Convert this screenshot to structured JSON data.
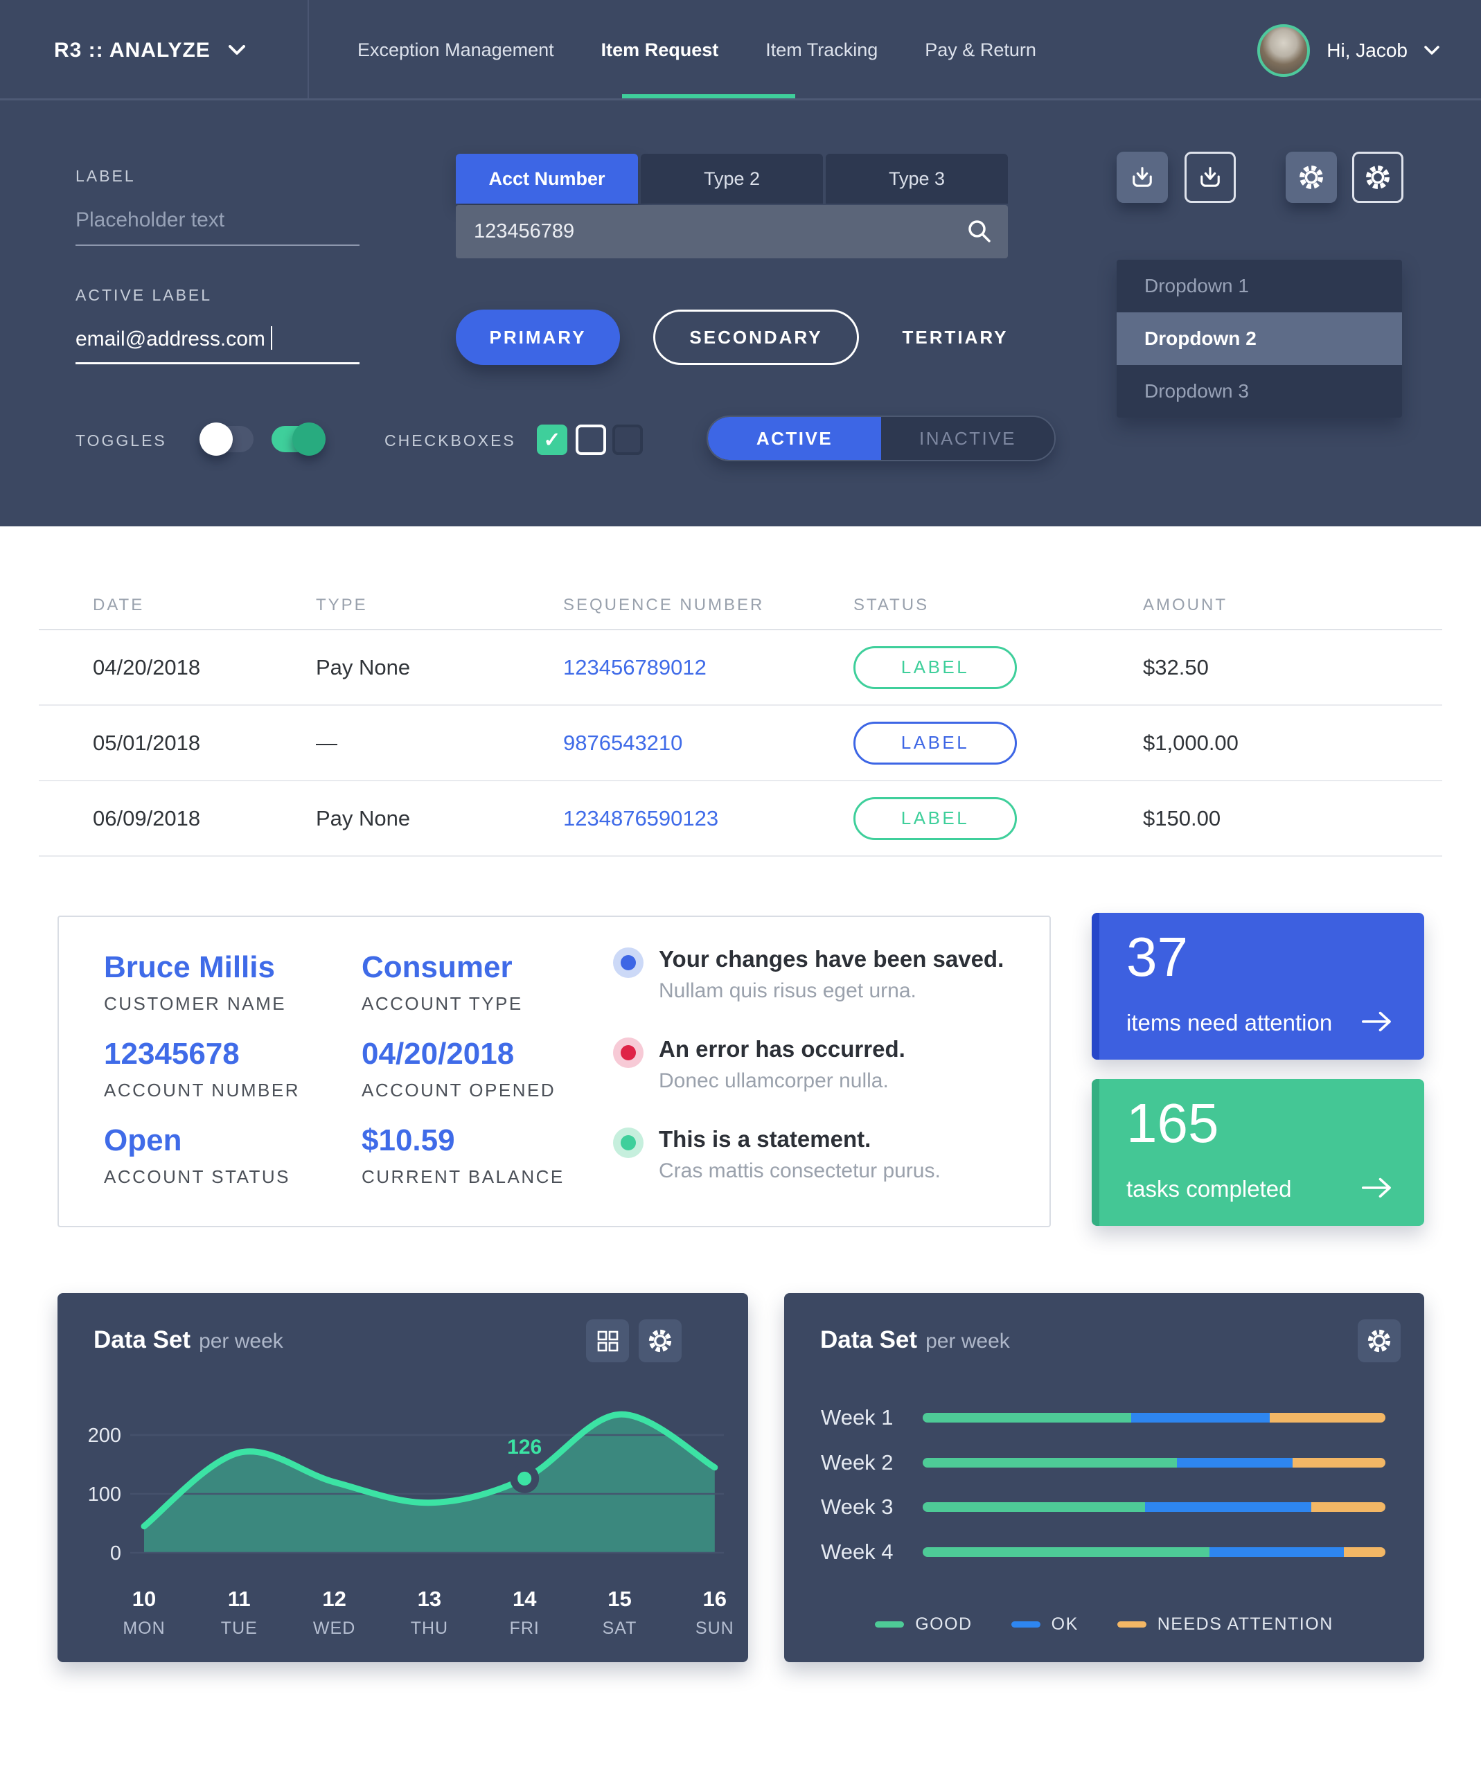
{
  "colors": {
    "slate": "#3c4862",
    "dark": "#2d3850",
    "accent_blue": "#3d66e5",
    "green": "#3fcf9b",
    "chart_line_green": "#3ce3a4",
    "red": "#df2347",
    "orange": "#f3b765",
    "bar_blue": "#2e86f0",
    "link_blue": "#3f6be8"
  },
  "nav": {
    "brand": "R3 :: ANALYZE",
    "items": [
      {
        "label": "Exception Management",
        "active": false
      },
      {
        "label": "Item Request",
        "active": true
      },
      {
        "label": "Item Tracking",
        "active": false
      },
      {
        "label": "Pay & Return",
        "active": false
      }
    ],
    "user": "Hi, Jacob"
  },
  "form": {
    "label1": "LABEL",
    "placeholder": "Placeholder text",
    "label2": "ACTIVE LABEL",
    "email_value": "email@address.com",
    "tabs": [
      "Acct Number",
      "Type 2",
      "Type 3"
    ],
    "active_tab": "Acct Number",
    "search_value": "123456789",
    "buttons": {
      "primary": "PRIMARY",
      "secondary": "SECONDARY",
      "tertiary": "TERTIARY"
    },
    "dropdown_items": [
      "Dropdown 1",
      "Dropdown 2",
      "Dropdown 3"
    ],
    "dropdown_selected": "Dropdown 2",
    "toggles_label": "TOGGLES",
    "toggles": [
      "off",
      "on"
    ],
    "checkboxes_label": "CHECKBOXES",
    "checkboxes": [
      "checked",
      "light",
      "dark"
    ],
    "segmented": {
      "active": "ACTIVE",
      "inactive": "INACTIVE"
    }
  },
  "table": {
    "headers": [
      "DATE",
      "TYPE",
      "SEQUENCE NUMBER",
      "STATUS",
      "AMOUNT"
    ],
    "rows": [
      {
        "date": "04/20/2018",
        "type": "Pay None",
        "sequence": "123456789012",
        "status": "LABEL",
        "status_color": "green",
        "amount": "$32.50"
      },
      {
        "date": "05/01/2018",
        "type": "—",
        "sequence": "9876543210",
        "status": "LABEL",
        "status_color": "blue",
        "amount": "$1,000.00"
      },
      {
        "date": "06/09/2018",
        "type": "Pay None",
        "sequence": "1234876590123",
        "status": "LABEL",
        "status_color": "green",
        "amount": "$150.00"
      }
    ]
  },
  "account": {
    "fields": [
      {
        "value": "Bruce Millis",
        "label": "CUSTOMER NAME"
      },
      {
        "value": "Consumer",
        "label": "ACCOUNT TYPE"
      },
      {
        "value": "12345678",
        "label": "ACCOUNT NUMBER"
      },
      {
        "value": "04/20/2018",
        "label": "ACCOUNT OPENED"
      },
      {
        "value": "Open",
        "label": "ACCOUNT STATUS"
      },
      {
        "value": "$10.59",
        "label": "CURRENT BALANCE"
      }
    ]
  },
  "messages": [
    {
      "title": "Your changes have been saved.",
      "body": "Nullam quis risus eget urna.",
      "color": "#3d66e5",
      "halo": "#ccd9f7"
    },
    {
      "title": "An error has occurred.",
      "body": "Donec ullamcorper nulla.",
      "color": "#df2347",
      "halo": "#f7cad6"
    },
    {
      "title": "This is a statement.",
      "body": "Cras mattis consectetur purus.",
      "color": "#3fcf9b",
      "halo": "#c6efdd"
    }
  ],
  "stat_cards": [
    {
      "value": "37",
      "label": "items need attention",
      "color": "blue"
    },
    {
      "value": "165",
      "label": "tasks completed",
      "color": "green"
    }
  ],
  "chart_data": [
    {
      "type": "area",
      "title": "Data Set",
      "subtitle": "per week",
      "x": [
        "10",
        "11",
        "12",
        "13",
        "14",
        "15",
        "16"
      ],
      "x_days": [
        "MON",
        "TUE",
        "WED",
        "THU",
        "FRI",
        "SAT",
        "SUN"
      ],
      "values": [
        45,
        170,
        120,
        85,
        126,
        235,
        145
      ],
      "highlight": {
        "index": 4,
        "label": "126"
      },
      "yticks": [
        0,
        100,
        200
      ],
      "ylim": [
        0,
        250
      ],
      "grid": true,
      "series_color": "#3ce3a4"
    },
    {
      "type": "bar-horizontal-stacked",
      "title": "Data Set",
      "subtitle": "per week",
      "categories": [
        "Week 1",
        "Week 2",
        "Week 3",
        "Week 4"
      ],
      "series": [
        {
          "name": "GOOD",
          "color": "#4ecb97",
          "values": [
            45,
            55,
            48,
            62
          ]
        },
        {
          "name": "OK",
          "color": "#2e86f0",
          "values": [
            30,
            25,
            36,
            29
          ]
        },
        {
          "name": "NEEDS ATTENTION",
          "color": "#f3b765",
          "values": [
            25,
            20,
            16,
            9
          ]
        }
      ],
      "legend_position": "bottom"
    }
  ]
}
